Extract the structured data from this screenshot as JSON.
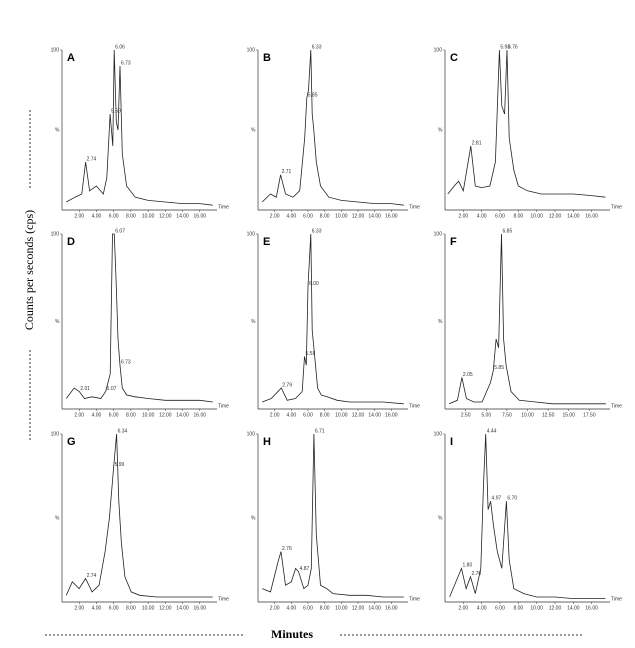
{
  "figure": {
    "ylabel": "Counts per seconds (cps)",
    "xlabel": "Minutes"
  },
  "chart_data": [
    {
      "type": "line",
      "title": "A",
      "ylabel": "%",
      "xlabel": "Time",
      "color": "#222",
      "xlim": [
        0,
        18
      ],
      "ylim": [
        0,
        100
      ],
      "yticks": [
        100
      ],
      "xticks": [
        {
          "value": 2,
          "label": "2.00"
        },
        {
          "value": 4,
          "label": "4.00"
        },
        {
          "value": 6,
          "label": "6.00"
        },
        {
          "value": 8,
          "label": "8.00"
        },
        {
          "value": 10,
          "label": "10.00"
        },
        {
          "value": 12,
          "label": "12.00"
        },
        {
          "value": 14,
          "label": "14.00"
        },
        {
          "value": 16,
          "label": "16.00"
        }
      ],
      "x": [
        0.5,
        1.5,
        2.3,
        2.74,
        3.2,
        4,
        4.8,
        5.2,
        5.59,
        5.9,
        6.06,
        6.3,
        6.5,
        6.73,
        7,
        7.5,
        8.5,
        10,
        12,
        14,
        16,
        17.5
      ],
      "values": [
        5,
        8,
        10,
        30,
        12,
        15,
        10,
        20,
        60,
        40,
        100,
        55,
        50,
        90,
        35,
        15,
        8,
        6,
        5,
        4,
        4,
        3
      ],
      "annotations": [
        {
          "x": 2.74,
          "y": 30,
          "label": "2.74"
        },
        {
          "x": 5.59,
          "y": 60,
          "label": "5.59"
        },
        {
          "x": 6.06,
          "y": 100,
          "label": "6.06"
        },
        {
          "x": 6.73,
          "y": 90,
          "label": "6.73"
        }
      ]
    },
    {
      "type": "line",
      "title": "B",
      "ylabel": "%",
      "xlabel": "Time",
      "color": "#222",
      "xlim": [
        0,
        18
      ],
      "ylim": [
        0,
        100
      ],
      "yticks": [
        100
      ],
      "xticks": [
        {
          "value": 2,
          "label": "2.00"
        },
        {
          "value": 4,
          "label": "4.00"
        },
        {
          "value": 6,
          "label": "6.00"
        },
        {
          "value": 8,
          "label": "8.00"
        },
        {
          "value": 10,
          "label": "10.00"
        },
        {
          "value": 12,
          "label": "12.00"
        },
        {
          "value": 14,
          "label": "14.00"
        },
        {
          "value": 16,
          "label": "16.00"
        }
      ],
      "x": [
        0.5,
        1.5,
        2.2,
        2.71,
        3.3,
        4.2,
        5,
        5.6,
        5.85,
        6.06,
        6.33,
        6.5,
        6.7,
        7,
        7.5,
        8.5,
        10,
        12,
        14,
        16,
        17.5
      ],
      "values": [
        5,
        10,
        8,
        22,
        10,
        8,
        12,
        45,
        70,
        75,
        100,
        60,
        50,
        30,
        15,
        8,
        6,
        5,
        4,
        4,
        3
      ],
      "annotations": [
        {
          "x": 2.71,
          "y": 22,
          "label": "2.71"
        },
        {
          "x": 5.85,
          "y": 70,
          "label": "5.85"
        },
        {
          "x": 6.33,
          "y": 100,
          "label": "6.33"
        }
      ]
    },
    {
      "type": "line",
      "title": "C",
      "ylabel": "%",
      "xlabel": "Time",
      "color": "#222",
      "xlim": [
        0,
        18
      ],
      "ylim": [
        0,
        100
      ],
      "yticks": [
        100
      ],
      "xticks": [
        {
          "value": 2,
          "label": "2.00"
        },
        {
          "value": 4,
          "label": "4.00"
        },
        {
          "value": 6,
          "label": "6.00"
        },
        {
          "value": 8,
          "label": "8.00"
        },
        {
          "value": 10,
          "label": "10.00"
        },
        {
          "value": 12,
          "label": "12.00"
        },
        {
          "value": 14,
          "label": "14.00"
        },
        {
          "value": 16,
          "label": "16.00"
        }
      ],
      "x": [
        0.3,
        1,
        1.48,
        2,
        2.81,
        3.3,
        4,
        4.9,
        5.5,
        5.93,
        6.2,
        6.5,
        6.76,
        7,
        7.5,
        8,
        9,
        10.5,
        12,
        14,
        16,
        17.5
      ],
      "values": [
        10,
        15,
        18,
        12,
        40,
        15,
        14,
        15,
        30,
        100,
        65,
        60,
        100,
        45,
        25,
        15,
        12,
        10,
        10,
        10,
        9,
        8
      ],
      "annotations": [
        {
          "x": 2.81,
          "y": 40,
          "label": "2.81"
        },
        {
          "x": 5.93,
          "y": 100,
          "label": "5.93"
        },
        {
          "x": 6.76,
          "y": 100,
          "label": "6.76"
        }
      ]
    },
    {
      "type": "line",
      "title": "D",
      "ylabel": "%",
      "xlabel": "Time",
      "color": "#222",
      "xlim": [
        0,
        18
      ],
      "ylim": [
        0,
        100
      ],
      "yticks": [
        100
      ],
      "xticks": [
        {
          "value": 2,
          "label": "2.00"
        },
        {
          "value": 4,
          "label": "4.00"
        },
        {
          "value": 6,
          "label": "6.00"
        },
        {
          "value": 8,
          "label": "8.00"
        },
        {
          "value": 10,
          "label": "10.00"
        },
        {
          "value": 12,
          "label": "12.00"
        },
        {
          "value": 14,
          "label": "14.00"
        },
        {
          "value": 16,
          "label": "16.00"
        }
      ],
      "x": [
        0.5,
        1.4,
        2.01,
        2.6,
        3.5,
        4.5,
        5.07,
        5.6,
        5.87,
        6.07,
        6.3,
        6.5,
        6.73,
        7,
        7.5,
        8.5,
        10,
        12,
        14,
        16,
        17.5
      ],
      "values": [
        6,
        12,
        10,
        6,
        7,
        6,
        10,
        20,
        100,
        100,
        70,
        40,
        25,
        12,
        8,
        7,
        6,
        5,
        5,
        5,
        4
      ],
      "annotations": [
        {
          "x": 2.01,
          "y": 10,
          "label": "2.01"
        },
        {
          "x": 5.07,
          "y": 10,
          "label": "5.07"
        },
        {
          "x": 6.07,
          "y": 100,
          "label": "6.07"
        },
        {
          "x": 6.73,
          "y": 25,
          "label": "6.73"
        }
      ]
    },
    {
      "type": "line",
      "title": "E",
      "ylabel": "%",
      "xlabel": "Time",
      "color": "#222",
      "xlim": [
        0,
        18
      ],
      "ylim": [
        0,
        100
      ],
      "yticks": [
        100
      ],
      "xticks": [
        {
          "value": 2,
          "label": "2.00"
        },
        {
          "value": 4,
          "label": "4.00"
        },
        {
          "value": 6,
          "label": "6.00"
        },
        {
          "value": 8,
          "label": "8.00"
        },
        {
          "value": 10,
          "label": "10.00"
        },
        {
          "value": 12,
          "label": "12.00"
        },
        {
          "value": 14,
          "label": "14.00"
        },
        {
          "value": 16,
          "label": "16.00"
        }
      ],
      "x": [
        0.5,
        1.6,
        2.79,
        3.5,
        4.5,
        5.3,
        5.58,
        5.8,
        6,
        6.33,
        6.5,
        6.8,
        7.15,
        7.6,
        8.29,
        9.5,
        11,
        13,
        15,
        17.5
      ],
      "values": [
        4,
        6,
        12,
        5,
        6,
        10,
        30,
        25,
        70,
        100,
        45,
        30,
        12,
        8,
        7,
        5,
        4,
        4,
        4,
        3
      ],
      "annotations": [
        {
          "x": 2.79,
          "y": 12,
          "label": "2.79"
        },
        {
          "x": 5.58,
          "y": 30,
          "label": "5.58"
        },
        {
          "x": 6,
          "y": 70,
          "label": "6.00"
        },
        {
          "x": 6.33,
          "y": 100,
          "label": "6.33"
        }
      ]
    },
    {
      "type": "line",
      "title": "F",
      "ylabel": "%",
      "xlabel": "Time",
      "color": "#222",
      "xlim": [
        0,
        20
      ],
      "ylim": [
        0,
        100
      ],
      "yticks": [
        100
      ],
      "xticks": [
        {
          "value": 2.5,
          "label": "2.50"
        },
        {
          "value": 5,
          "label": "5.00"
        },
        {
          "value": 7.5,
          "label": "7.50"
        },
        {
          "value": 10,
          "label": "10.00"
        },
        {
          "value": 12.5,
          "label": "12.50"
        },
        {
          "value": 15,
          "label": "15.00"
        },
        {
          "value": 17.5,
          "label": "17.50"
        }
      ],
      "x": [
        0.5,
        1.5,
        2.05,
        2.6,
        3.5,
        4.5,
        5.5,
        5.85,
        6.2,
        6.5,
        6.85,
        7.1,
        7.4,
        8,
        9,
        11,
        13,
        15,
        17,
        19.5
      ],
      "values": [
        3,
        5,
        18,
        6,
        4,
        4,
        15,
        22,
        40,
        35,
        100,
        40,
        25,
        10,
        5,
        4,
        3,
        3,
        3,
        3
      ],
      "annotations": [
        {
          "x": 2.05,
          "y": 18,
          "label": "2.05"
        },
        {
          "x": 5.85,
          "y": 22,
          "label": "5.85"
        },
        {
          "x": 6.85,
          "y": 100,
          "label": "6.85"
        }
      ]
    },
    {
      "type": "line",
      "title": "G",
      "ylabel": "%",
      "xlabel": "Time",
      "color": "#222",
      "xlim": [
        0,
        18
      ],
      "ylim": [
        0,
        100
      ],
      "yticks": [
        100
      ],
      "xticks": [
        {
          "value": 2,
          "label": "2.00"
        },
        {
          "value": 4,
          "label": "4.00"
        },
        {
          "value": 6,
          "label": "6.00"
        },
        {
          "value": 8,
          "label": "8.00"
        },
        {
          "value": 10,
          "label": "10.00"
        },
        {
          "value": 12,
          "label": "12.00"
        },
        {
          "value": 14,
          "label": "14.00"
        },
        {
          "value": 16,
          "label": "16.00"
        }
      ],
      "x": [
        0.5,
        1.2,
        2,
        2.74,
        3.5,
        4.31,
        5,
        5.5,
        5.99,
        6.34,
        6.6,
        6.9,
        7.3,
        8.04,
        9,
        11,
        13,
        15,
        17.5
      ],
      "values": [
        4,
        12,
        8,
        14,
        6,
        10,
        30,
        50,
        80,
        100,
        60,
        35,
        15,
        6,
        4,
        3,
        3,
        3,
        3
      ],
      "annotations": [
        {
          "x": 2.74,
          "y": 14,
          "label": "2.74"
        },
        {
          "x": 5.99,
          "y": 80,
          "label": "5.99"
        },
        {
          "x": 6.34,
          "y": 100,
          "label": "6.34"
        }
      ]
    },
    {
      "type": "line",
      "title": "H",
      "ylabel": "%",
      "xlabel": "Time",
      "color": "#222",
      "xlim": [
        0,
        18
      ],
      "ylim": [
        0,
        100
      ],
      "yticks": [
        100
      ],
      "xticks": [
        {
          "value": 2,
          "label": "2.00"
        },
        {
          "value": 4,
          "label": "4.00"
        },
        {
          "value": 6,
          "label": "6.00"
        },
        {
          "value": 8,
          "label": "8.00"
        },
        {
          "value": 10,
          "label": "10.00"
        },
        {
          "value": 12,
          "label": "12.00"
        },
        {
          "value": 14,
          "label": "14.00"
        },
        {
          "value": 16,
          "label": "16.00"
        }
      ],
      "x": [
        0.5,
        1.5,
        2.46,
        2.76,
        3.3,
        4,
        4.51,
        4.87,
        5.5,
        6,
        6.4,
        6.71,
        7,
        7.5,
        8.24,
        9,
        11,
        13,
        15,
        17.5
      ],
      "values": [
        8,
        6,
        25,
        30,
        10,
        12,
        20,
        18,
        8,
        10,
        20,
        100,
        40,
        10,
        8,
        5,
        4,
        4,
        3,
        3
      ],
      "annotations": [
        {
          "x": 2.76,
          "y": 30,
          "label": "2.76"
        },
        {
          "x": 4.87,
          "y": 18,
          "label": "4.87"
        },
        {
          "x": 6.71,
          "y": 100,
          "label": "6.71"
        }
      ]
    },
    {
      "type": "line",
      "title": "I",
      "ylabel": "%",
      "xlabel": "Time",
      "color": "#222",
      "xlim": [
        0,
        18
      ],
      "ylim": [
        0,
        100
      ],
      "yticks": [
        100
      ],
      "xticks": [
        {
          "value": 2,
          "label": "2.00"
        },
        {
          "value": 4,
          "label": "4.00"
        },
        {
          "value": 6,
          "label": "6.00"
        },
        {
          "value": 8,
          "label": "8.00"
        },
        {
          "value": 10,
          "label": "10.00"
        },
        {
          "value": 12,
          "label": "12.00"
        },
        {
          "value": 14,
          "label": "14.00"
        },
        {
          "value": 16,
          "label": "16.00"
        }
      ],
      "x": [
        0.5,
        1.8,
        2.3,
        2.78,
        3.3,
        3.9,
        4.2,
        4.44,
        4.7,
        4.97,
        5.3,
        5.7,
        6.2,
        6.7,
        7,
        7.5,
        8.6,
        10,
        12,
        14,
        16,
        17.5
      ],
      "values": [
        3,
        20,
        8,
        15,
        5,
        20,
        70,
        100,
        55,
        60,
        45,
        30,
        20,
        60,
        25,
        8,
        5,
        3,
        3,
        2,
        2,
        2
      ],
      "annotations": [
        {
          "x": 1.8,
          "y": 20,
          "label": "1.80"
        },
        {
          "x": 2.78,
          "y": 15,
          "label": "2.78"
        },
        {
          "x": 4.44,
          "y": 100,
          "label": "4.44"
        },
        {
          "x": 4.97,
          "y": 60,
          "label": "4.97"
        },
        {
          "x": 6.7,
          "y": 60,
          "label": "6.70"
        }
      ]
    }
  ]
}
